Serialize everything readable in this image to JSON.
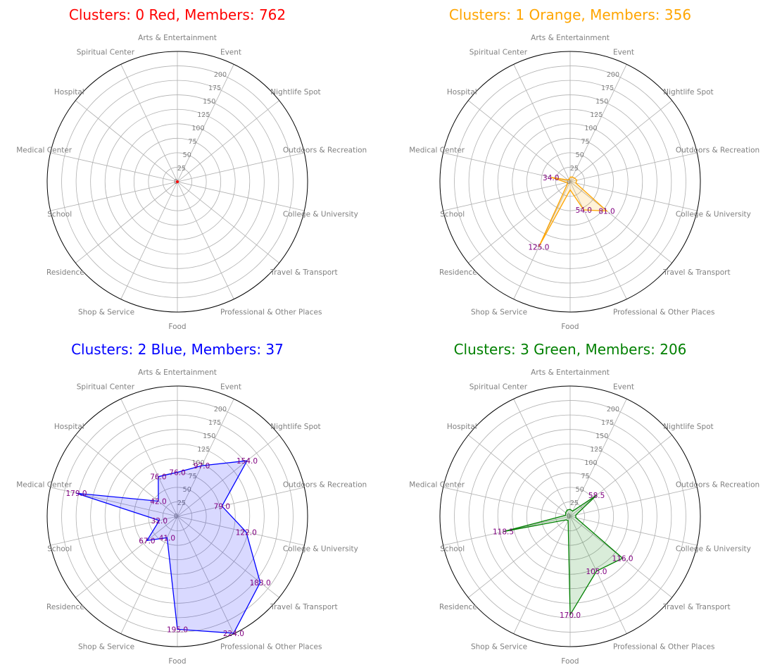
{
  "chart_data": [
    {
      "type": "radar",
      "title": "Clusters: 0 Red, Members: 762",
      "title_color": "#ff0000",
      "line_color": "#ff0000",
      "fill_color": "#ff0000",
      "categories": [
        "Arts & Entertainment",
        "Event",
        "Nightlife Spot",
        "Outdoors & Recreation",
        "College & University",
        "Travel & Transport",
        "Professional & Other Places",
        "Food",
        "Shop & Service",
        "Residence",
        "School",
        "Medical Center",
        "Hospital",
        "Spiritual Center"
      ],
      "values": [
        0,
        0,
        0,
        0,
        0,
        0,
        0,
        0,
        0,
        0,
        0,
        0,
        0,
        0
      ],
      "labels": [
        "",
        "",
        "",
        "",
        "",
        "",
        "",
        "",
        "",
        "",
        "",
        "",
        "",
        ""
      ],
      "rticks": [
        "0",
        "25",
        "50",
        "75",
        "100",
        "125",
        "150",
        "175",
        "200"
      ],
      "rlim": [
        0,
        225
      ]
    },
    {
      "type": "radar",
      "title": "Clusters: 1 Orange, Members: 356",
      "title_color": "#ffa500",
      "line_color": "#ffa500",
      "fill_color": "#ffa500",
      "categories": [
        "Arts & Entertainment",
        "Event",
        "Nightlife Spot",
        "Outdoors & Recreation",
        "College & University",
        "Travel & Transport",
        "Professional & Other Places",
        "Food",
        "Shop & Service",
        "Residence",
        "School",
        "Medical Center",
        "Hospital",
        "Spiritual Center"
      ],
      "values": [
        8,
        9,
        10,
        12,
        10,
        81,
        54,
        14,
        125,
        6,
        6,
        34,
        5,
        4
      ],
      "labels": [
        "",
        "",
        "",
        "",
        "",
        "81.0",
        "54.0",
        "",
        "125.0",
        "",
        "",
        "34.0",
        "",
        ""
      ],
      "rticks": [
        "0",
        "25",
        "50",
        "75",
        "100",
        "125",
        "150",
        "175",
        "200"
      ],
      "rlim": [
        0,
        225
      ]
    },
    {
      "type": "radar",
      "title": "Clusters: 2 Blue, Members: 37",
      "title_color": "#0000ff",
      "line_color": "#0000ff",
      "fill_color": "#0000ff",
      "categories": [
        "Arts & Entertainment",
        "Event",
        "Nightlife Spot",
        "Outdoors & Recreation",
        "College & University",
        "Travel & Transport",
        "Professional & Other Places",
        "Food",
        "Shop & Service",
        "Residence",
        "School",
        "Medical Center",
        "Hospital",
        "Spiritual Center"
      ],
      "values": [
        76,
        97,
        154,
        79,
        122,
        183,
        224,
        195,
        41,
        67,
        32,
        179,
        42,
        76
      ],
      "labels": [
        "76.0",
        "97.0",
        "154.0",
        "79.0",
        "122.0",
        "183.0",
        "224.0",
        "195.0",
        "41.0",
        "67.0",
        "32.0",
        "179.0",
        "42.0",
        "76.0"
      ],
      "rticks": [
        "0",
        "25",
        "50",
        "75",
        "100",
        "125",
        "150",
        "175",
        "200"
      ],
      "rlim": [
        0,
        225
      ]
    },
    {
      "type": "radar",
      "title": "Clusters: 3 Green, Members: 206",
      "title_color": "#008000",
      "line_color": "#008000",
      "fill_color": "#008000",
      "categories": [
        "Arts & Entertainment",
        "Event",
        "Nightlife Spot",
        "Outdoors & Recreation",
        "College & University",
        "Travel & Transport",
        "Professional & Other Places",
        "Food",
        "Shop & Service",
        "Residence",
        "School",
        "Medical Center",
        "Hospital",
        "Spiritual Center"
      ],
      "values": [
        12,
        10,
        58.5,
        10,
        10,
        116,
        105,
        170,
        8,
        10,
        118.5,
        8,
        10,
        12
      ],
      "labels": [
        "",
        "",
        "58.5",
        "",
        "",
        "116.0",
        "105.0",
        "170.0",
        "",
        "",
        "118.5",
        "",
        "",
        ""
      ],
      "rticks": [
        "0",
        "25",
        "50",
        "75",
        "100",
        "125",
        "150",
        "175",
        "200"
      ],
      "rlim": [
        0,
        225
      ]
    }
  ]
}
